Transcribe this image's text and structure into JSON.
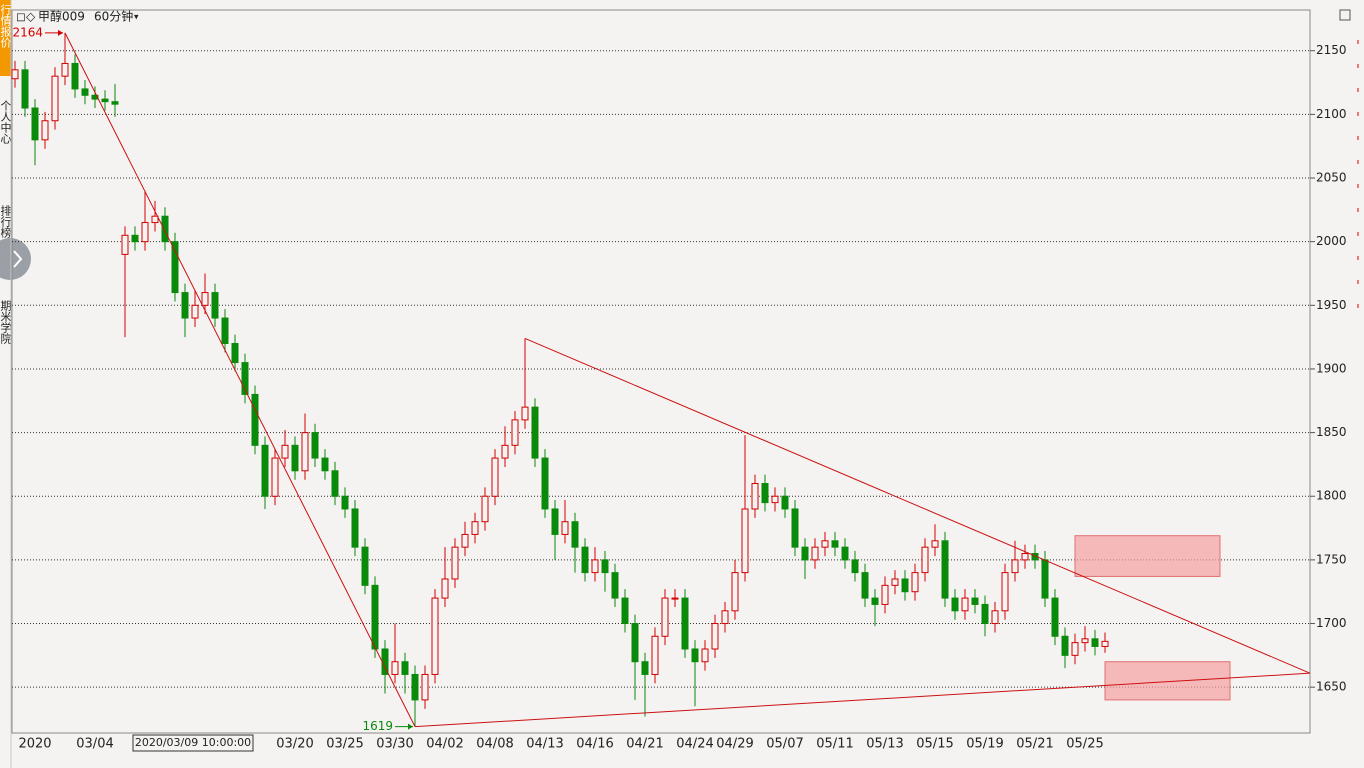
{
  "app": {
    "sidebar": [
      "行情报价",
      "个人中心",
      "排行榜",
      "期米学院"
    ],
    "symbol": "甲醇009",
    "period": "60分钟",
    "tooltip": "2020/03/09 10:00:00"
  },
  "chart_data": {
    "type": "candlestick",
    "up_color": "#d40000",
    "down_color": "#0a8a0a",
    "grid": true,
    "ylim": [
      1614,
      2182
    ],
    "yticks": [
      1650,
      1700,
      1750,
      1800,
      1850,
      1900,
      1950,
      2000,
      2050,
      2100,
      2150
    ],
    "categories": [
      null,
      null,
      "2020",
      null,
      null,
      null,
      null,
      null,
      "03/04",
      null,
      null,
      null,
      null,
      null,
      null,
      null,
      null,
      null,
      null,
      null,
      null,
      null,
      null,
      null,
      null,
      null,
      null,
      null,
      "03/20",
      null,
      null,
      null,
      null,
      "03/25",
      null,
      null,
      null,
      null,
      "03/30",
      null,
      null,
      null,
      null,
      "04/02",
      null,
      null,
      null,
      null,
      "04/08",
      null,
      null,
      null,
      null,
      "04/13",
      null,
      null,
      null,
      null,
      "04/16",
      null,
      null,
      null,
      null,
      "04/21",
      null,
      null,
      null,
      null,
      "04/24",
      null,
      null,
      null,
      "04/29",
      null,
      null,
      null,
      null,
      "05/07",
      null,
      null,
      null,
      null,
      "05/11",
      null,
      null,
      null,
      null,
      "05/13",
      null,
      null,
      null,
      null,
      "05/15",
      null,
      null,
      null,
      null,
      "05/19",
      null,
      null,
      null,
      null,
      "05/21",
      null,
      null,
      null,
      null,
      "05/25",
      null,
      null
    ],
    "open": [
      2128,
      2135,
      2105,
      2080,
      2095,
      2130,
      2140,
      2120,
      2115,
      2112,
      2110,
      1990,
      2005,
      2000,
      2015,
      2020,
      2000,
      1960,
      1940,
      1950,
      1960,
      1940,
      1920,
      1905,
      1880,
      1840,
      1800,
      1830,
      1840,
      1820,
      1850,
      1830,
      1820,
      1800,
      1790,
      1760,
      1730,
      1680,
      1660,
      1670,
      1660,
      1640,
      1660,
      1720,
      1735,
      1760,
      1770,
      1780,
      1800,
      1830,
      1840,
      1860,
      1870,
      1830,
      1790,
      1770,
      1780,
      1760,
      1740,
      1750,
      1740,
      1720,
      1700,
      1670,
      1660,
      1690,
      1720,
      1720,
      1680,
      1670,
      1680,
      1700,
      1710,
      1740,
      1790,
      1810,
      1795,
      1800,
      1790,
      1760,
      1750,
      1760,
      1765,
      1760,
      1750,
      1740,
      1720,
      1715,
      1730,
      1735,
      1725,
      1740,
      1760,
      1765,
      1720,
      1710,
      1720,
      1715,
      1700,
      1710,
      1740,
      1750,
      1755,
      1750,
      1720,
      1690,
      1675,
      1685,
      1688,
      1682
    ],
    "high": [
      2142,
      2142,
      2112,
      2102,
      2137,
      2164,
      2147,
      2127,
      2122,
      2119,
      2124,
      2012,
      2012,
      2040,
      2032,
      2027,
      2007,
      1967,
      1962,
      1975,
      1967,
      1947,
      1927,
      1912,
      1887,
      1847,
      1837,
      1852,
      1847,
      1865,
      1857,
      1837,
      1827,
      1807,
      1797,
      1767,
      1737,
      1687,
      1700,
      1677,
      1667,
      1667,
      1727,
      1760,
      1767,
      1780,
      1787,
      1807,
      1837,
      1855,
      1867,
      1924,
      1877,
      1837,
      1797,
      1797,
      1787,
      1767,
      1760,
      1757,
      1747,
      1727,
      1707,
      1677,
      1697,
      1727,
      1727,
      1727,
      1687,
      1687,
      1707,
      1717,
      1750,
      1848,
      1817,
      1817,
      1807,
      1807,
      1797,
      1767,
      1767,
      1772,
      1772,
      1767,
      1757,
      1747,
      1727,
      1737,
      1742,
      1742,
      1747,
      1767,
      1778,
      1772,
      1727,
      1727,
      1727,
      1722,
      1717,
      1747,
      1765,
      1762,
      1762,
      1757,
      1727,
      1697,
      1692,
      1698,
      1695,
      1693
    ],
    "low": [
      2121,
      2098,
      2060,
      2073,
      2088,
      2123,
      2113,
      2108,
      2105,
      2103,
      2098,
      1925,
      1993,
      1993,
      2008,
      1993,
      1953,
      1925,
      1933,
      1943,
      1933,
      1913,
      1898,
      1873,
      1833,
      1790,
      1793,
      1823,
      1813,
      1813,
      1823,
      1813,
      1793,
      1783,
      1753,
      1723,
      1673,
      1645,
      1653,
      1645,
      1619,
      1633,
      1653,
      1713,
      1728,
      1753,
      1763,
      1773,
      1793,
      1823,
      1833,
      1853,
      1823,
      1783,
      1750,
      1763,
      1740,
      1733,
      1733,
      1725,
      1713,
      1693,
      1640,
      1627,
      1653,
      1683,
      1713,
      1673,
      1635,
      1663,
      1673,
      1693,
      1703,
      1733,
      1783,
      1788,
      1788,
      1783,
      1753,
      1735,
      1743,
      1753,
      1753,
      1743,
      1733,
      1713,
      1698,
      1708,
      1723,
      1718,
      1718,
      1733,
      1753,
      1713,
      1703,
      1703,
      1708,
      1690,
      1693,
      1703,
      1733,
      1743,
      1743,
      1713,
      1683,
      1665,
      1668,
      1678,
      1675,
      1677
    ],
    "close": [
      2135,
      2105,
      2080,
      2095,
      2130,
      2140,
      2120,
      2115,
      2112,
      2110,
      2108,
      2005,
      2000,
      2015,
      2020,
      2000,
      1960,
      1940,
      1950,
      1960,
      1940,
      1920,
      1905,
      1880,
      1840,
      1800,
      1830,
      1840,
      1820,
      1850,
      1830,
      1820,
      1800,
      1790,
      1760,
      1730,
      1680,
      1660,
      1670,
      1660,
      1640,
      1660,
      1720,
      1735,
      1760,
      1770,
      1780,
      1800,
      1830,
      1840,
      1860,
      1870,
      1830,
      1790,
      1770,
      1780,
      1760,
      1740,
      1750,
      1740,
      1720,
      1700,
      1670,
      1660,
      1690,
      1720,
      1720,
      1680,
      1670,
      1680,
      1700,
      1710,
      1740,
      1790,
      1810,
      1795,
      1800,
      1790,
      1760,
      1750,
      1760,
      1765,
      1760,
      1750,
      1740,
      1720,
      1715,
      1730,
      1735,
      1725,
      1740,
      1760,
      1765,
      1720,
      1710,
      1720,
      1715,
      1700,
      1710,
      1740,
      1750,
      1755,
      1750,
      1720,
      1690,
      1675,
      1685,
      1688,
      1682,
      1686
    ],
    "annotations": [
      {
        "value": 2164,
        "index": 5,
        "color": "#d40000"
      },
      {
        "value": 1619,
        "index": 40,
        "color": "#0a8a0a"
      }
    ],
    "trend_lines": [
      {
        "from": [
          5,
          2164
        ],
        "to": [
          40,
          1619
        ]
      },
      {
        "from": [
          40,
          1619
        ],
        "to": [
          129.5,
          1661
        ]
      },
      {
        "from": [
          51,
          1924
        ],
        "to": [
          129.5,
          1661
        ]
      }
    ],
    "line_color": "#cc1010",
    "zones": [
      {
        "x": [
          106,
          120.5
        ],
        "y": [
          1737,
          1769
        ]
      },
      {
        "x": [
          109,
          121.5
        ],
        "y": [
          1640,
          1670
        ]
      }
    ],
    "zone_color": "#f4a0a0"
  }
}
